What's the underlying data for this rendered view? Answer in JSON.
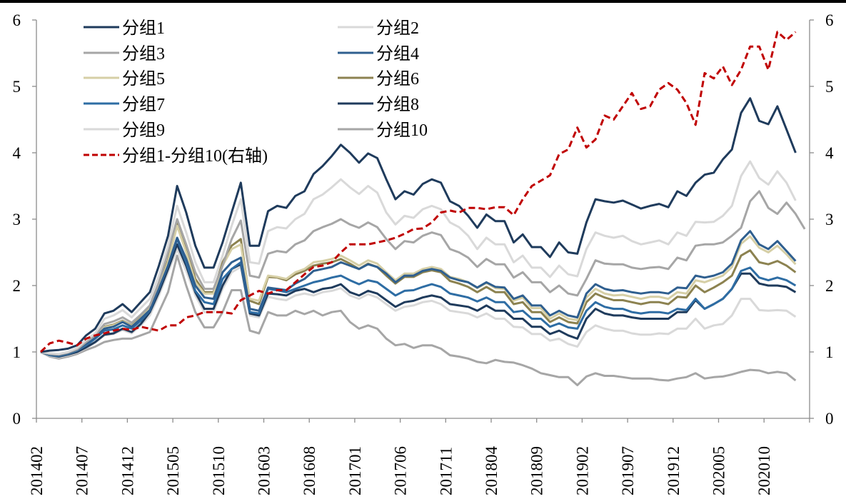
{
  "chart_data": {
    "type": "line",
    "title": "",
    "xlabel": "",
    "ylabel": "",
    "ylim": [
      0,
      6
    ],
    "y2lim": [
      0,
      6
    ],
    "yticks": [
      "0",
      "1",
      "2",
      "3",
      "4",
      "5",
      "6"
    ],
    "y2ticks": [
      "0",
      "1",
      "2",
      "3",
      "4",
      "5",
      "6"
    ],
    "grid": false,
    "legend_position": "top-left",
    "x_start": "201402",
    "x_tick_labels": [
      "201402",
      "201407",
      "201412",
      "201505",
      "201510",
      "201603",
      "201608",
      "201701",
      "201706",
      "201711",
      "201804",
      "201809",
      "201902",
      "201907",
      "201912",
      "202005",
      "202010"
    ],
    "x_tick_every_months": 5,
    "series": [
      {
        "name": "分组1",
        "axis": "left",
        "color": "#1f3b5c",
        "dash": false,
        "values": [
          1.0,
          1.02,
          1.03,
          1.05,
          1.1,
          1.25,
          1.35,
          1.58,
          1.62,
          1.72,
          1.6,
          1.75,
          1.9,
          2.3,
          2.75,
          3.5,
          3.1,
          2.6,
          2.27,
          2.27,
          2.65,
          3.1,
          3.55,
          2.6,
          2.6,
          3.12,
          3.2,
          3.17,
          3.35,
          3.42,
          3.68,
          3.8,
          3.95,
          4.12,
          4.0,
          3.85,
          3.99,
          3.92,
          3.6,
          3.3,
          3.42,
          3.37,
          3.53,
          3.6,
          3.55,
          3.27,
          3.2,
          3.05,
          2.87,
          3.07,
          2.97,
          2.97,
          2.65,
          2.77,
          2.58,
          2.58,
          2.43,
          2.65,
          2.5,
          2.48,
          2.95,
          3.3,
          3.27,
          3.25,
          3.28,
          3.22,
          3.16,
          3.2,
          3.23,
          3.18,
          3.42,
          3.35,
          3.55,
          3.67,
          3.7,
          3.9,
          4.05,
          4.6,
          4.82,
          4.48,
          4.43,
          4.7,
          4.35,
          4.0
        ]
      },
      {
        "name": "分组2",
        "axis": "left",
        "color": "#d9d9d9",
        "dash": false,
        "values": [
          1.0,
          0.98,
          0.97,
          1.0,
          1.06,
          1.18,
          1.28,
          1.5,
          1.55,
          1.63,
          1.52,
          1.66,
          1.8,
          2.15,
          2.6,
          3.2,
          2.8,
          2.35,
          2.05,
          2.05,
          2.45,
          2.9,
          3.3,
          2.35,
          2.33,
          2.82,
          2.88,
          2.86,
          3.0,
          3.08,
          3.3,
          3.37,
          3.48,
          3.6,
          3.48,
          3.38,
          3.5,
          3.4,
          3.1,
          2.92,
          3.05,
          3.02,
          3.15,
          3.2,
          3.15,
          2.95,
          2.88,
          2.75,
          2.55,
          2.72,
          2.62,
          2.62,
          2.35,
          2.45,
          2.27,
          2.27,
          2.13,
          2.3,
          2.17,
          2.14,
          2.55,
          2.8,
          2.75,
          2.72,
          2.75,
          2.67,
          2.62,
          2.65,
          2.68,
          2.62,
          2.8,
          2.75,
          2.96,
          2.95,
          2.96,
          3.05,
          3.2,
          3.65,
          3.87,
          3.62,
          3.52,
          3.72,
          3.55,
          3.28
        ]
      },
      {
        "name": "分组3",
        "axis": "left",
        "color": "#a6a6a6",
        "dash": false,
        "values": [
          1.0,
          0.97,
          0.96,
          0.99,
          1.04,
          1.15,
          1.25,
          1.42,
          1.46,
          1.52,
          1.44,
          1.56,
          1.7,
          2.05,
          2.5,
          3.0,
          2.62,
          2.2,
          1.95,
          1.95,
          2.3,
          2.7,
          2.98,
          2.15,
          2.12,
          2.48,
          2.52,
          2.5,
          2.62,
          2.68,
          2.82,
          2.88,
          2.93,
          3.0,
          2.92,
          2.87,
          2.95,
          2.88,
          2.7,
          2.55,
          2.67,
          2.65,
          2.75,
          2.8,
          2.76,
          2.55,
          2.5,
          2.42,
          2.28,
          2.4,
          2.32,
          2.32,
          2.12,
          2.2,
          2.05,
          2.05,
          1.9,
          2.0,
          1.88,
          1.85,
          2.1,
          2.38,
          2.33,
          2.32,
          2.32,
          2.27,
          2.25,
          2.27,
          2.28,
          2.25,
          2.42,
          2.38,
          2.6,
          2.62,
          2.62,
          2.65,
          2.75,
          2.87,
          3.27,
          3.42,
          3.17,
          3.08,
          3.25,
          3.08,
          2.85
        ]
      },
      {
        "name": "分组4",
        "axis": "left",
        "color": "#2f5f8f",
        "dash": false,
        "values": [
          1.0,
          0.96,
          0.95,
          0.98,
          1.03,
          1.12,
          1.22,
          1.35,
          1.38,
          1.45,
          1.38,
          1.5,
          1.63,
          1.95,
          2.3,
          2.72,
          2.4,
          2.0,
          1.82,
          1.8,
          2.2,
          2.35,
          2.42,
          1.65,
          1.62,
          1.97,
          1.95,
          1.93,
          2.03,
          2.1,
          2.22,
          2.25,
          2.28,
          2.35,
          2.3,
          2.25,
          2.32,
          2.28,
          2.18,
          2.05,
          2.15,
          2.15,
          2.22,
          2.25,
          2.22,
          2.12,
          2.08,
          2.05,
          1.97,
          2.05,
          1.98,
          1.97,
          1.8,
          1.85,
          1.7,
          1.7,
          1.55,
          1.62,
          1.55,
          1.52,
          1.88,
          2.02,
          1.95,
          1.92,
          1.93,
          1.9,
          1.88,
          1.9,
          1.9,
          1.88,
          1.97,
          1.96,
          2.15,
          2.12,
          2.15,
          2.2,
          2.33,
          2.68,
          2.82,
          2.62,
          2.55,
          2.67,
          2.52,
          2.37
        ]
      },
      {
        "name": "分组5",
        "axis": "left",
        "color": "#d6cfa6",
        "dash": false,
        "values": [
          1.0,
          0.96,
          0.95,
          0.98,
          1.03,
          1.12,
          1.23,
          1.37,
          1.4,
          1.46,
          1.39,
          1.51,
          1.65,
          1.97,
          2.35,
          2.9,
          2.5,
          2.05,
          1.88,
          1.88,
          2.3,
          2.55,
          2.62,
          1.8,
          1.77,
          2.15,
          2.13,
          2.1,
          2.2,
          2.25,
          2.35,
          2.37,
          2.4,
          2.45,
          2.38,
          2.3,
          2.38,
          2.33,
          2.2,
          2.08,
          2.18,
          2.18,
          2.25,
          2.28,
          2.25,
          2.13,
          2.1,
          2.05,
          1.96,
          2.04,
          1.96,
          1.95,
          1.77,
          1.82,
          1.66,
          1.66,
          1.5,
          1.58,
          1.5,
          1.48,
          1.82,
          1.95,
          1.88,
          1.85,
          1.86,
          1.83,
          1.8,
          1.83,
          1.83,
          1.8,
          1.9,
          1.88,
          2.08,
          2.05,
          2.1,
          2.15,
          2.28,
          2.63,
          2.74,
          2.57,
          2.5,
          2.6,
          2.47,
          2.32
        ]
      },
      {
        "name": "分组6",
        "axis": "left",
        "color": "#8c8250",
        "dash": false,
        "values": [
          1.0,
          0.96,
          0.95,
          0.98,
          1.03,
          1.13,
          1.23,
          1.38,
          1.41,
          1.47,
          1.4,
          1.52,
          1.66,
          1.98,
          2.38,
          2.95,
          2.55,
          2.1,
          1.9,
          1.9,
          2.35,
          2.6,
          2.7,
          1.77,
          1.72,
          2.13,
          2.12,
          2.08,
          2.17,
          2.22,
          2.3,
          2.33,
          2.35,
          2.4,
          2.33,
          2.25,
          2.33,
          2.28,
          2.15,
          2.03,
          2.13,
          2.13,
          2.2,
          2.23,
          2.2,
          2.07,
          2.03,
          1.98,
          1.9,
          1.98,
          1.9,
          1.9,
          1.72,
          1.75,
          1.6,
          1.6,
          1.45,
          1.52,
          1.45,
          1.43,
          1.75,
          1.88,
          1.82,
          1.78,
          1.78,
          1.75,
          1.72,
          1.75,
          1.75,
          1.72,
          1.83,
          1.82,
          2.0,
          1.9,
          1.97,
          2.05,
          2.15,
          2.45,
          2.53,
          2.35,
          2.32,
          2.37,
          2.3,
          2.2
        ]
      },
      {
        "name": "分组7",
        "axis": "left",
        "color": "#2e6da4",
        "dash": false,
        "values": [
          1.0,
          0.95,
          0.94,
          0.97,
          1.02,
          1.1,
          1.2,
          1.32,
          1.34,
          1.4,
          1.35,
          1.47,
          1.62,
          1.95,
          2.3,
          2.7,
          2.35,
          1.92,
          1.75,
          1.72,
          2.1,
          2.25,
          2.35,
          1.6,
          1.58,
          1.95,
          1.93,
          1.9,
          1.95,
          2.0,
          2.05,
          2.08,
          2.12,
          2.15,
          2.08,
          2.02,
          2.08,
          2.05,
          1.95,
          1.85,
          1.92,
          1.93,
          1.98,
          2.02,
          1.98,
          1.88,
          1.85,
          1.82,
          1.76,
          1.82,
          1.75,
          1.75,
          1.6,
          1.62,
          1.5,
          1.5,
          1.38,
          1.43,
          1.37,
          1.35,
          1.62,
          1.75,
          1.68,
          1.65,
          1.65,
          1.6,
          1.58,
          1.6,
          1.6,
          1.58,
          1.65,
          1.63,
          1.8,
          1.65,
          1.72,
          1.8,
          1.95,
          2.22,
          2.27,
          2.12,
          2.08,
          2.12,
          2.08,
          2.0
        ]
      },
      {
        "name": "分组8",
        "axis": "left",
        "color": "#1f3b5c",
        "dash": false,
        "values": [
          1.0,
          0.95,
          0.93,
          0.96,
          1.0,
          1.07,
          1.15,
          1.26,
          1.28,
          1.35,
          1.3,
          1.42,
          1.6,
          1.9,
          2.25,
          2.62,
          2.3,
          1.9,
          1.65,
          1.65,
          2.0,
          2.25,
          2.32,
          1.58,
          1.55,
          1.88,
          1.87,
          1.85,
          1.92,
          1.95,
          1.9,
          1.95,
          1.97,
          2.02,
          1.9,
          1.85,
          1.92,
          1.88,
          1.78,
          1.68,
          1.75,
          1.77,
          1.82,
          1.85,
          1.82,
          1.72,
          1.7,
          1.68,
          1.62,
          1.7,
          1.62,
          1.62,
          1.5,
          1.5,
          1.38,
          1.38,
          1.27,
          1.32,
          1.25,
          1.2,
          1.5,
          1.65,
          1.58,
          1.55,
          1.55,
          1.52,
          1.5,
          1.5,
          1.5,
          1.5,
          1.6,
          1.6,
          1.78,
          1.65,
          1.72,
          1.8,
          1.95,
          2.18,
          2.18,
          2.03,
          2.0,
          2.0,
          1.98,
          1.9
        ]
      },
      {
        "name": "分组9",
        "axis": "left",
        "color": "#d9d9d9",
        "dash": false,
        "values": [
          1.0,
          0.94,
          0.92,
          0.95,
          0.99,
          1.06,
          1.14,
          1.25,
          1.27,
          1.33,
          1.28,
          1.4,
          1.55,
          1.85,
          2.2,
          2.55,
          2.22,
          1.85,
          1.6,
          1.6,
          1.95,
          2.2,
          2.28,
          1.55,
          1.52,
          1.83,
          1.8,
          1.78,
          1.85,
          1.88,
          1.85,
          1.9,
          1.92,
          1.96,
          1.85,
          1.8,
          1.87,
          1.82,
          1.72,
          1.62,
          1.68,
          1.7,
          1.75,
          1.77,
          1.72,
          1.62,
          1.6,
          1.58,
          1.52,
          1.58,
          1.5,
          1.5,
          1.38,
          1.37,
          1.27,
          1.27,
          1.17,
          1.2,
          1.12,
          1.08,
          1.3,
          1.4,
          1.35,
          1.32,
          1.32,
          1.28,
          1.26,
          1.26,
          1.28,
          1.27,
          1.35,
          1.35,
          1.5,
          1.35,
          1.4,
          1.42,
          1.55,
          1.8,
          1.8,
          1.63,
          1.62,
          1.63,
          1.62,
          1.53
        ]
      },
      {
        "name": "分组10",
        "axis": "left",
        "color": "#a6a6a6",
        "dash": false,
        "values": [
          1.0,
          0.93,
          0.9,
          0.93,
          0.97,
          1.03,
          1.08,
          1.15,
          1.18,
          1.2,
          1.2,
          1.25,
          1.3,
          1.6,
          1.9,
          2.45,
          2.0,
          1.6,
          1.37,
          1.37,
          1.6,
          1.93,
          1.93,
          1.32,
          1.28,
          1.6,
          1.55,
          1.55,
          1.62,
          1.57,
          1.62,
          1.55,
          1.6,
          1.62,
          1.45,
          1.35,
          1.4,
          1.35,
          1.2,
          1.1,
          1.12,
          1.06,
          1.1,
          1.1,
          1.05,
          0.95,
          0.93,
          0.9,
          0.85,
          0.83,
          0.88,
          0.85,
          0.84,
          0.8,
          0.75,
          0.68,
          0.65,
          0.62,
          0.62,
          0.5,
          0.63,
          0.68,
          0.64,
          0.64,
          0.62,
          0.6,
          0.6,
          0.6,
          0.58,
          0.57,
          0.6,
          0.62,
          0.68,
          0.6,
          0.62,
          0.63,
          0.66,
          0.7,
          0.73,
          0.72,
          0.68,
          0.7,
          0.68,
          0.57
        ]
      },
      {
        "name": "分组1-分组10(右轴)",
        "axis": "right",
        "color": "#c00000",
        "dash": true,
        "values": [
          1.0,
          1.13,
          1.17,
          1.14,
          1.1,
          1.2,
          1.25,
          1.28,
          1.32,
          1.35,
          1.33,
          1.38,
          1.35,
          1.32,
          1.4,
          1.4,
          1.52,
          1.55,
          1.6,
          1.6,
          1.6,
          1.58,
          1.78,
          1.85,
          1.92,
          1.88,
          1.93,
          1.93,
          2.05,
          2.17,
          2.28,
          2.3,
          2.35,
          2.5,
          2.62,
          2.62,
          2.62,
          2.65,
          2.68,
          2.72,
          2.78,
          2.85,
          2.86,
          2.95,
          3.1,
          3.13,
          3.1,
          3.17,
          3.17,
          3.15,
          3.18,
          3.18,
          3.06,
          3.3,
          3.5,
          3.58,
          3.66,
          3.98,
          4.05,
          4.38,
          4.08,
          4.2,
          4.56,
          4.5,
          4.7,
          4.9,
          4.66,
          4.7,
          4.95,
          5.05,
          4.95,
          4.75,
          4.42,
          5.2,
          5.12,
          5.3,
          5.02,
          5.25,
          5.6,
          5.6,
          5.25,
          5.82,
          5.7,
          5.82
        ]
      }
    ]
  }
}
